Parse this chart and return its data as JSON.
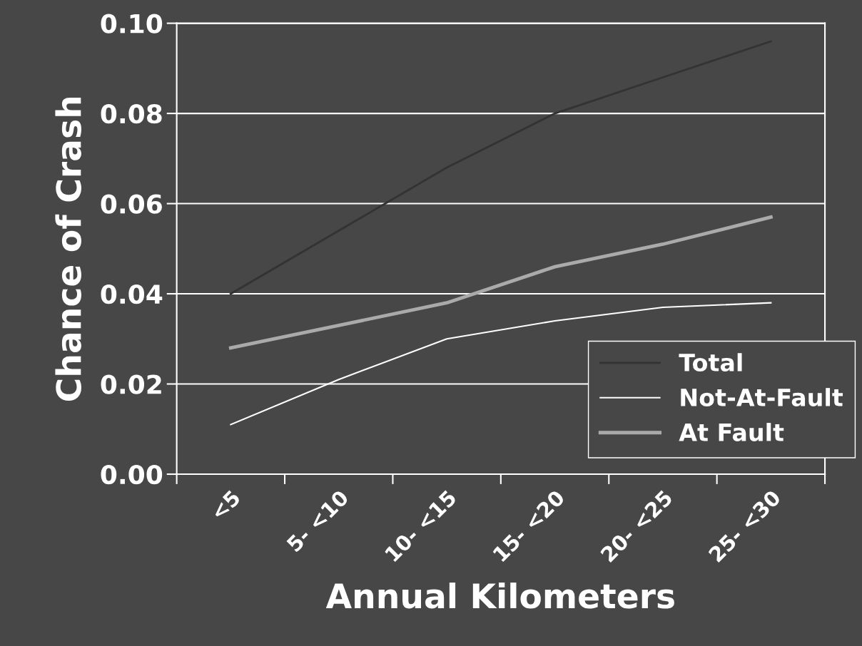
{
  "chart_data": {
    "type": "line",
    "xlabel": "Annual Kilometers",
    "ylabel": "Chance of Crash",
    "categories": [
      "<5",
      "5- <10",
      "10- <15",
      "15- <20",
      "20- <25",
      "25- <30"
    ],
    "series": [
      {
        "name": "Total",
        "color": "#333333",
        "values": [
          0.04,
          0.054,
          0.068,
          0.08,
          0.088,
          0.096
        ]
      },
      {
        "name": "Not-At-Fault",
        "color": "#ffffff",
        "values": [
          0.011,
          0.021,
          0.03,
          0.034,
          0.037,
          0.038
        ]
      },
      {
        "name": "At Fault",
        "color": "#aaaaaa",
        "values": [
          0.028,
          0.033,
          0.038,
          0.046,
          0.051,
          0.057
        ]
      }
    ],
    "ylim": [
      0,
      0.1
    ],
    "yticks": [
      {
        "value": 0,
        "label": "0.00"
      },
      {
        "value": 0.02,
        "label": "0.02"
      },
      {
        "value": 0.04,
        "label": "0.04"
      },
      {
        "value": 0.06,
        "label": "0.06"
      },
      {
        "value": 0.08,
        "label": "0.08"
      },
      {
        "value": 0.1,
        "label": "0.10"
      }
    ],
    "grid": "y",
    "legend": "bottom right",
    "marker": "none",
    "line_style": "solid"
  }
}
